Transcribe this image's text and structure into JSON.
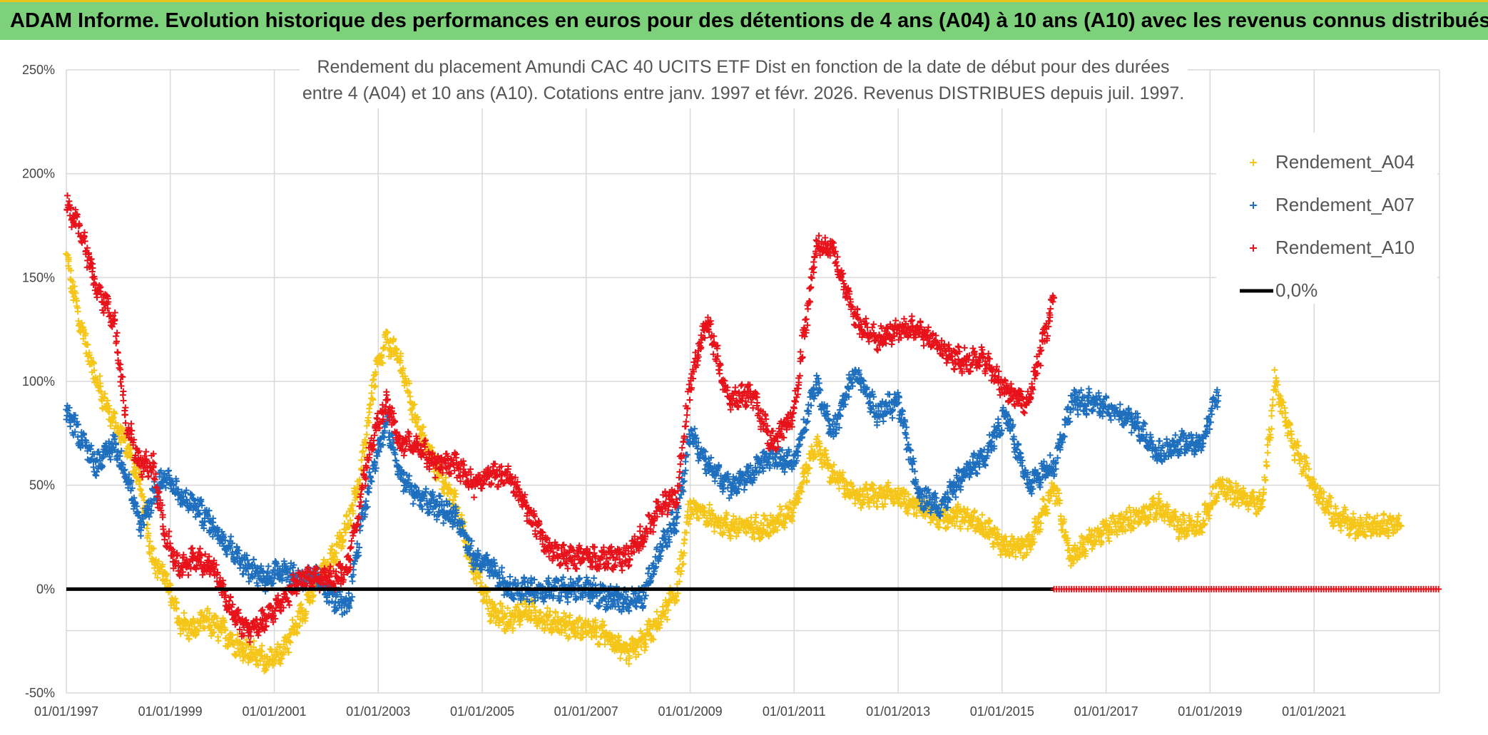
{
  "header": {
    "banner": "ADAM Informe. Evolution historique des performances en euros pour des détentions de 4 ans (A04) à 10 ans (A10) avec les revenus connus distribués"
  },
  "colors": {
    "A04": "#f5c518",
    "A07": "#1f6fbf",
    "A10": "#e8121b",
    "zero": "#000000",
    "grid": "#d9d9d9",
    "banner": "#7dd17b"
  },
  "chart_data": {
    "type": "scatter",
    "title": [
      "Rendement du placement Amundi CAC 40 UCITS ETF Dist en fonction de la date de début pour des durées",
      "entre 4 (A04) et 10 ans (A10). Cotations entre janv. 1997 et févr. 2026. Revenus DISTRIBUES depuis juil. 1997."
    ],
    "x_axis": {
      "type": "date",
      "min": "1997-01-01",
      "max": "2023-06-01",
      "tick_labels": [
        "01/01/1997",
        "01/01/1999",
        "01/01/2001",
        "01/01/2003",
        "01/01/2005",
        "01/01/2007",
        "01/01/2009",
        "01/01/2011",
        "01/01/2013",
        "01/01/2015",
        "01/01/2017",
        "01/01/2019",
        "01/01/2021"
      ]
    },
    "y_axis": {
      "min": -0.5,
      "max": 2.5,
      "tick_labels": [
        "-50%",
        "0%",
        "50%",
        "100%",
        "150%",
        "200%",
        "250%"
      ]
    },
    "grid": true,
    "legend_position": "right",
    "legend": [
      "Rendement_A04",
      "Rendement_A07",
      "Rendement_A10",
      "0,0%"
    ],
    "series": [
      {
        "name": "Rendement_A04",
        "marker": "plus",
        "points": [
          [
            "1997-01-01",
            1.6
          ],
          [
            "1997-04-01",
            1.3
          ],
          [
            "1997-08-01",
            1.0
          ],
          [
            "1997-12-01",
            0.8
          ],
          [
            "1998-03-01",
            0.7
          ],
          [
            "1998-06-01",
            0.5
          ],
          [
            "1998-09-01",
            0.15
          ],
          [
            "1998-12-01",
            0.05
          ],
          [
            "1999-03-01",
            -0.15
          ],
          [
            "1999-06-01",
            -0.2
          ],
          [
            "1999-09-01",
            -0.15
          ],
          [
            "2000-01-01",
            -0.2
          ],
          [
            "2000-05-01",
            -0.28
          ],
          [
            "2000-09-01",
            -0.32
          ],
          [
            "2001-01-01",
            -0.35
          ],
          [
            "2001-05-01",
            -0.22
          ],
          [
            "2001-09-01",
            -0.05
          ],
          [
            "2002-01-01",
            0.1
          ],
          [
            "2002-05-01",
            0.25
          ],
          [
            "2002-09-01",
            0.55
          ],
          [
            "2002-12-01",
            1.0
          ],
          [
            "2003-03-01",
            1.2
          ],
          [
            "2003-06-01",
            1.1
          ],
          [
            "2003-10-01",
            0.8
          ],
          [
            "2004-02-01",
            0.6
          ],
          [
            "2004-07-01",
            0.4
          ],
          [
            "2004-11-01",
            0.1
          ],
          [
            "2005-03-01",
            -0.1
          ],
          [
            "2005-07-01",
            -0.15
          ],
          [
            "2005-11-01",
            -0.1
          ],
          [
            "2006-04-01",
            -0.15
          ],
          [
            "2006-09-01",
            -0.18
          ],
          [
            "2007-02-01",
            -0.2
          ],
          [
            "2007-06-01",
            -0.22
          ],
          [
            "2007-10-01",
            -0.32
          ],
          [
            "2008-02-01",
            -0.25
          ],
          [
            "2008-06-01",
            -0.15
          ],
          [
            "2008-10-01",
            0.0
          ],
          [
            "2009-01-01",
            0.4
          ],
          [
            "2009-05-01",
            0.35
          ],
          [
            "2009-10-01",
            0.3
          ],
          [
            "2010-03-01",
            0.3
          ],
          [
            "2010-08-01",
            0.3
          ],
          [
            "2011-01-01",
            0.4
          ],
          [
            "2011-06-01",
            0.7
          ],
          [
            "2011-10-01",
            0.55
          ],
          [
            "2012-03-01",
            0.45
          ],
          [
            "2012-08-01",
            0.45
          ],
          [
            "2013-01-01",
            0.45
          ],
          [
            "2013-06-01",
            0.4
          ],
          [
            "2013-11-01",
            0.35
          ],
          [
            "2014-04-01",
            0.35
          ],
          [
            "2014-09-01",
            0.3
          ],
          [
            "2015-02-01",
            0.2
          ],
          [
            "2015-07-01",
            0.2
          ],
          [
            "2016-01-01",
            0.5
          ],
          [
            "2016-05-01",
            0.15
          ],
          [
            "2016-10-01",
            0.25
          ],
          [
            "2017-03-01",
            0.3
          ],
          [
            "2017-08-01",
            0.35
          ],
          [
            "2018-01-01",
            0.4
          ],
          [
            "2018-06-01",
            0.3
          ],
          [
            "2018-11-01",
            0.3
          ],
          [
            "2019-03-01",
            0.5
          ],
          [
            "2019-08-01",
            0.45
          ],
          [
            "2020-01-01",
            0.4
          ],
          [
            "2020-04-01",
            1.0
          ],
          [
            "2020-08-01",
            0.7
          ],
          [
            "2021-01-01",
            0.5
          ],
          [
            "2021-06-01",
            0.35
          ],
          [
            "2021-11-01",
            0.3
          ],
          [
            "2022-04-01",
            0.3
          ],
          [
            "2022-09-01",
            0.3
          ]
        ]
      },
      {
        "name": "Rendement_A07",
        "marker": "plus",
        "points": [
          [
            "1997-01-01",
            0.85
          ],
          [
            "1997-04-01",
            0.75
          ],
          [
            "1997-08-01",
            0.6
          ],
          [
            "1997-12-01",
            0.7
          ],
          [
            "1998-03-01",
            0.55
          ],
          [
            "1998-06-01",
            0.3
          ],
          [
            "1998-09-01",
            0.45
          ],
          [
            "1998-12-01",
            0.55
          ],
          [
            "1999-03-01",
            0.45
          ],
          [
            "1999-07-01",
            0.4
          ],
          [
            "1999-11-01",
            0.3
          ],
          [
            "2000-03-01",
            0.2
          ],
          [
            "2000-07-01",
            0.1
          ],
          [
            "2000-11-01",
            0.05
          ],
          [
            "2001-03-01",
            0.1
          ],
          [
            "2001-07-01",
            0.05
          ],
          [
            "2001-11-01",
            0.05
          ],
          [
            "2002-03-01",
            -0.05
          ],
          [
            "2002-06-01",
            -0.1
          ],
          [
            "2002-09-01",
            0.3
          ],
          [
            "2002-12-01",
            0.6
          ],
          [
            "2003-03-01",
            0.8
          ],
          [
            "2003-06-01",
            0.55
          ],
          [
            "2003-10-01",
            0.45
          ],
          [
            "2004-02-01",
            0.4
          ],
          [
            "2004-07-01",
            0.35
          ],
          [
            "2004-11-01",
            0.15
          ],
          [
            "2005-03-01",
            0.1
          ],
          [
            "2005-07-01",
            0.0
          ],
          [
            "2005-11-01",
            0.0
          ],
          [
            "2006-04-01",
            0.0
          ],
          [
            "2006-09-01",
            0.0
          ],
          [
            "2007-02-01",
            0.0
          ],
          [
            "2007-06-01",
            -0.05
          ],
          [
            "2007-10-01",
            -0.05
          ],
          [
            "2008-02-01",
            -0.05
          ],
          [
            "2008-06-01",
            0.2
          ],
          [
            "2008-10-01",
            0.35
          ],
          [
            "2009-01-01",
            0.75
          ],
          [
            "2009-05-01",
            0.6
          ],
          [
            "2009-10-01",
            0.5
          ],
          [
            "2010-03-01",
            0.55
          ],
          [
            "2010-08-01",
            0.65
          ],
          [
            "2011-01-01",
            0.6
          ],
          [
            "2011-06-01",
            1.0
          ],
          [
            "2011-10-01",
            0.75
          ],
          [
            "2012-03-01",
            1.05
          ],
          [
            "2012-08-01",
            0.85
          ],
          [
            "2013-01-01",
            0.9
          ],
          [
            "2013-06-01",
            0.45
          ],
          [
            "2013-11-01",
            0.4
          ],
          [
            "2014-04-01",
            0.55
          ],
          [
            "2014-09-01",
            0.65
          ],
          [
            "2015-02-01",
            0.85
          ],
          [
            "2015-07-01",
            0.5
          ],
          [
            "2016-01-01",
            0.6
          ],
          [
            "2016-05-01",
            0.9
          ],
          [
            "2016-10-01",
            0.9
          ],
          [
            "2017-03-01",
            0.85
          ],
          [
            "2017-08-01",
            0.8
          ],
          [
            "2018-01-01",
            0.65
          ],
          [
            "2018-06-01",
            0.7
          ],
          [
            "2018-11-01",
            0.7
          ],
          [
            "2019-03-01",
            0.95
          ]
        ]
      },
      {
        "name": "Rendement_A10",
        "marker": "plus",
        "points": [
          [
            "1997-01-01",
            1.85
          ],
          [
            "1997-04-01",
            1.75
          ],
          [
            "1997-08-01",
            1.45
          ],
          [
            "1997-12-01",
            1.3
          ],
          [
            "1998-03-01",
            0.8
          ],
          [
            "1998-06-01",
            0.6
          ],
          [
            "1998-09-01",
            0.6
          ],
          [
            "1998-12-01",
            0.25
          ],
          [
            "1999-03-01",
            0.1
          ],
          [
            "1999-07-01",
            0.15
          ],
          [
            "1999-11-01",
            0.1
          ],
          [
            "2000-03-01",
            -0.1
          ],
          [
            "2000-07-01",
            -0.2
          ],
          [
            "2000-11-01",
            -0.15
          ],
          [
            "2001-03-01",
            -0.05
          ],
          [
            "2001-07-01",
            0.05
          ],
          [
            "2001-11-01",
            0.05
          ],
          [
            "2002-03-01",
            0.05
          ],
          [
            "2002-06-01",
            0.1
          ],
          [
            "2002-09-01",
            0.45
          ],
          [
            "2002-12-01",
            0.75
          ],
          [
            "2003-03-01",
            0.9
          ],
          [
            "2003-06-01",
            0.7
          ],
          [
            "2003-10-01",
            0.7
          ],
          [
            "2004-02-01",
            0.6
          ],
          [
            "2004-07-01",
            0.6
          ],
          [
            "2004-11-01",
            0.5
          ],
          [
            "2005-03-01",
            0.55
          ],
          [
            "2005-07-01",
            0.55
          ],
          [
            "2005-11-01",
            0.4
          ],
          [
            "2006-04-01",
            0.2
          ],
          [
            "2006-09-01",
            0.15
          ],
          [
            "2007-02-01",
            0.15
          ],
          [
            "2007-06-01",
            0.15
          ],
          [
            "2007-10-01",
            0.15
          ],
          [
            "2008-02-01",
            0.25
          ],
          [
            "2008-06-01",
            0.4
          ],
          [
            "2008-10-01",
            0.45
          ],
          [
            "2009-01-01",
            1.0
          ],
          [
            "2009-05-01",
            1.3
          ],
          [
            "2009-10-01",
            0.9
          ],
          [
            "2010-03-01",
            0.95
          ],
          [
            "2010-08-01",
            0.7
          ],
          [
            "2011-01-01",
            0.85
          ],
          [
            "2011-06-01",
            1.65
          ],
          [
            "2011-10-01",
            1.65
          ],
          [
            "2012-03-01",
            1.3
          ],
          [
            "2012-08-01",
            1.2
          ],
          [
            "2013-01-01",
            1.25
          ],
          [
            "2013-06-01",
            1.25
          ],
          [
            "2013-11-01",
            1.15
          ],
          [
            "2014-04-01",
            1.1
          ],
          [
            "2014-09-01",
            1.1
          ],
          [
            "2015-02-01",
            0.95
          ],
          [
            "2015-07-01",
            0.9
          ],
          [
            "2016-01-01",
            1.4
          ]
        ]
      },
      {
        "name": "0,0%",
        "marker": "line",
        "points": [
          [
            "1997-01-01",
            0.0
          ],
          [
            "2016-01-01",
            0.0
          ]
        ]
      },
      {
        "name": "Rendement_A10 (0%)",
        "marker": "plus",
        "points": [
          [
            "2016-01-01",
            0.0
          ],
          [
            "2023-06-01",
            0.0
          ]
        ]
      }
    ]
  }
}
